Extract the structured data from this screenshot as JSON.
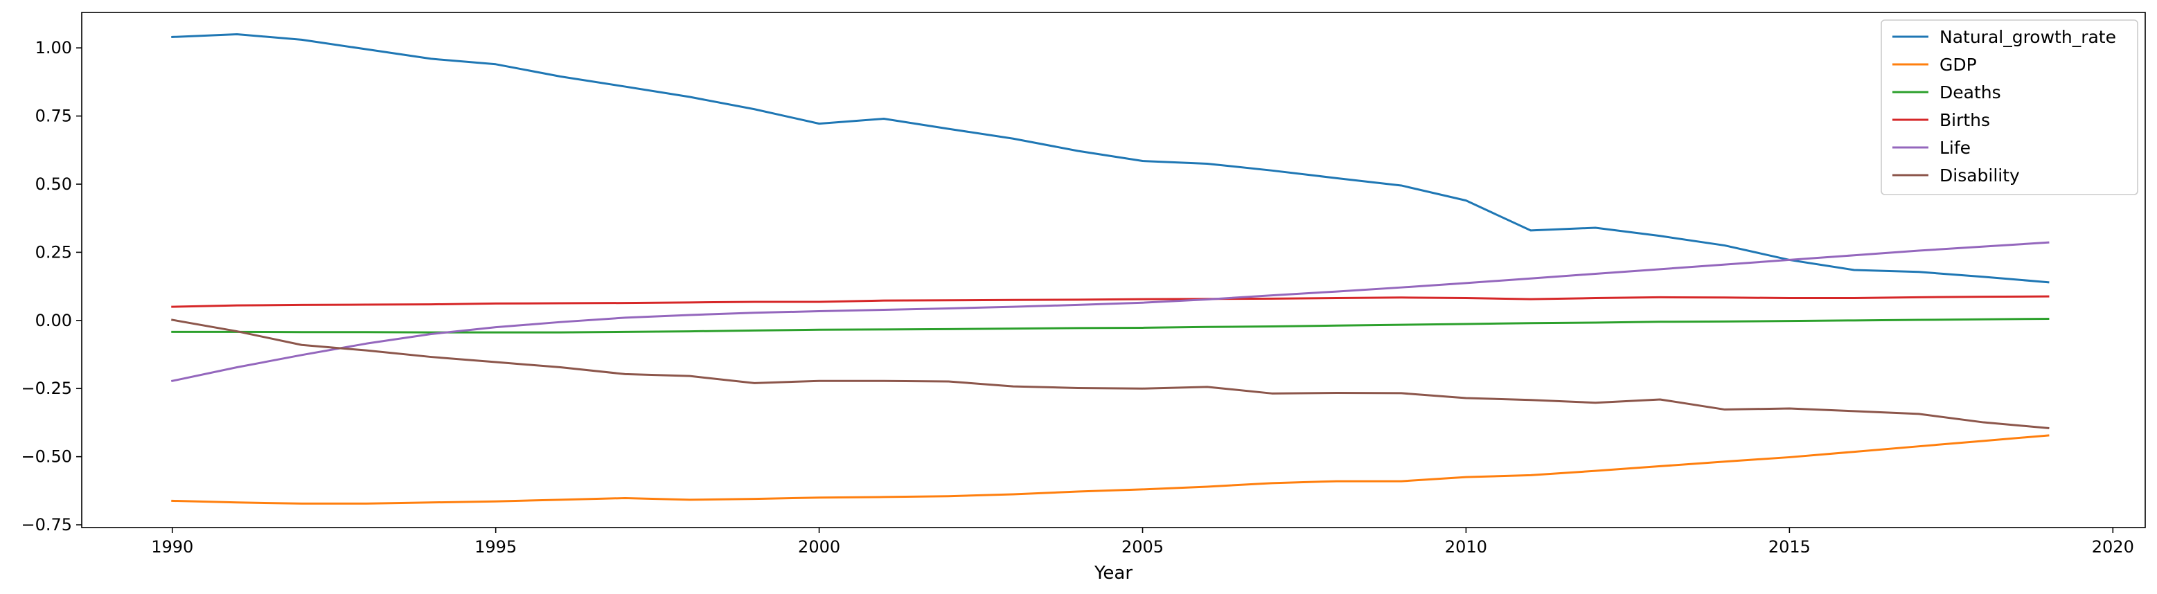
{
  "chart_data": {
    "type": "line",
    "title": "",
    "xlabel": "Year",
    "ylabel": "",
    "xlim": [
      1988.6,
      2020.5
    ],
    "ylim": [
      -0.76,
      1.13
    ],
    "x_ticks": [
      1990,
      1995,
      2000,
      2005,
      2010,
      2015,
      2020
    ],
    "x_tick_labels": [
      "1990",
      "1995",
      "2000",
      "2005",
      "2010",
      "2015",
      "2020"
    ],
    "y_ticks": [
      -0.75,
      -0.5,
      -0.25,
      0.0,
      0.25,
      0.5,
      0.75,
      1.0
    ],
    "y_tick_labels": [
      "−0.75",
      "−0.50",
      "−0.25",
      "0.00",
      "0.25",
      "0.50",
      "0.75",
      "1.00"
    ],
    "grid": false,
    "legend_position": "top-right",
    "x": [
      1990,
      1991,
      1992,
      1993,
      1994,
      1995,
      1996,
      1997,
      1998,
      1999,
      2000,
      2001,
      2002,
      2003,
      2004,
      2005,
      2006,
      2007,
      2008,
      2009,
      2010,
      2011,
      2012,
      2013,
      2014,
      2015,
      2016,
      2017,
      2018,
      2019
    ],
    "series": [
      {
        "name": "Natural_growth_rate",
        "color": "#1f77b4",
        "values": [
          1.04,
          1.05,
          1.03,
          0.995,
          0.96,
          0.94,
          0.895,
          0.858,
          0.82,
          0.775,
          0.722,
          0.74,
          0.703,
          0.667,
          0.622,
          0.585,
          0.575,
          0.55,
          0.522,
          0.495,
          0.44,
          0.33,
          0.34,
          0.31,
          0.275,
          0.222,
          0.185,
          0.178,
          0.16,
          0.14
        ]
      },
      {
        "name": "GDP",
        "color": "#ff7f0e",
        "values": [
          -0.662,
          -0.668,
          -0.672,
          -0.672,
          -0.668,
          -0.664,
          -0.658,
          -0.652,
          -0.658,
          -0.655,
          -0.65,
          -0.648,
          -0.645,
          -0.638,
          -0.628,
          -0.62,
          -0.61,
          -0.597,
          -0.59,
          -0.59,
          -0.575,
          -0.568,
          -0.552,
          -0.535,
          -0.518,
          -0.502,
          -0.482,
          -0.462,
          -0.442,
          -0.422
        ]
      },
      {
        "name": "Deaths",
        "color": "#2ca02c",
        "values": [
          -0.042,
          -0.042,
          -0.043,
          -0.043,
          -0.044,
          -0.044,
          -0.044,
          -0.042,
          -0.04,
          -0.037,
          -0.034,
          -0.033,
          -0.032,
          -0.03,
          -0.028,
          -0.027,
          -0.024,
          -0.022,
          -0.019,
          -0.016,
          -0.013,
          -0.01,
          -0.008,
          -0.005,
          -0.004,
          -0.002,
          0.0,
          0.002,
          0.004,
          0.006
        ]
      },
      {
        "name": "Births",
        "color": "#d62728",
        "values": [
          0.05,
          0.055,
          0.057,
          0.058,
          0.059,
          0.062,
          0.063,
          0.064,
          0.066,
          0.068,
          0.068,
          0.073,
          0.074,
          0.075,
          0.076,
          0.078,
          0.079,
          0.08,
          0.082,
          0.084,
          0.082,
          0.078,
          0.082,
          0.085,
          0.084,
          0.082,
          0.082,
          0.085,
          0.087,
          0.088
        ]
      },
      {
        "name": "Life",
        "color": "#9467bd",
        "values": [
          -0.222,
          -0.172,
          -0.127,
          -0.085,
          -0.05,
          -0.025,
          -0.006,
          0.01,
          0.02,
          0.028,
          0.034,
          0.039,
          0.044,
          0.05,
          0.057,
          0.065,
          0.077,
          0.092,
          0.106,
          0.121,
          0.137,
          0.154,
          0.171,
          0.188,
          0.205,
          0.222,
          0.239,
          0.256,
          0.271,
          0.286
        ]
      },
      {
        "name": "Disability",
        "color": "#8c564b",
        "values": [
          0.002,
          -0.04,
          -0.09,
          -0.11,
          -0.134,
          -0.153,
          -0.172,
          -0.197,
          -0.204,
          -0.23,
          -0.222,
          -0.222,
          -0.224,
          -0.242,
          -0.248,
          -0.25,
          -0.244,
          -0.268,
          -0.266,
          -0.267,
          -0.285,
          -0.292,
          -0.302,
          -0.29,
          -0.327,
          -0.323,
          -0.333,
          -0.343,
          -0.374,
          -0.395
        ]
      }
    ]
  }
}
